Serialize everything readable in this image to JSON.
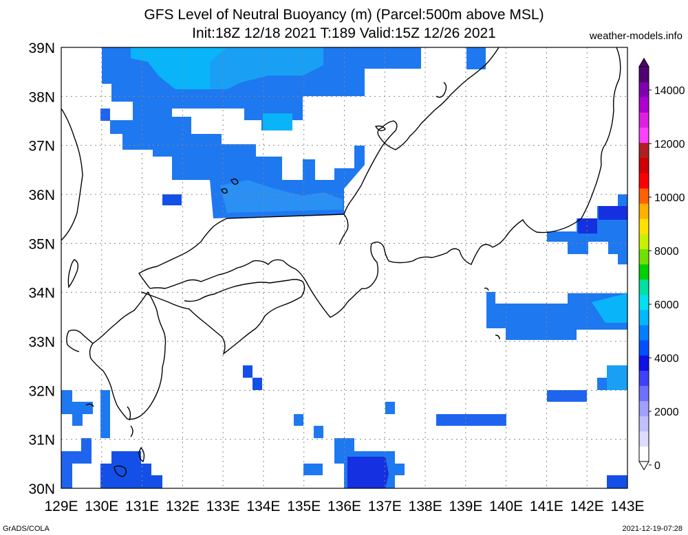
{
  "title": {
    "line1": "GFS Level of Neutral Buoyancy (m) (Parcel:500m above MSL)",
    "line2": "Init:18Z 12/18 2021 T:189 Valid:15Z 12/26 2021",
    "site": "weather-models.info"
  },
  "footer": {
    "left": "GrADS/COLA",
    "right": "2021-12-19-07:28"
  },
  "map": {
    "lon_range": [
      129,
      143
    ],
    "lat_range": [
      30,
      39
    ],
    "lon_labels": [
      "129E",
      "130E",
      "131E",
      "132E",
      "133E",
      "134E",
      "135E",
      "136E",
      "137E",
      "138E",
      "139E",
      "140E",
      "141E",
      "142E",
      "143E"
    ],
    "lat_labels": [
      "39N",
      "38N",
      "37N",
      "36N",
      "35N",
      "34N",
      "33N",
      "32N",
      "31N",
      "30N"
    ],
    "grid_style": "dotted",
    "ocean_color": "#ffffff",
    "coast_color": "#000000"
  },
  "colorbar": {
    "labels": [
      "0",
      "2000",
      "4000",
      "6000",
      "8000",
      "10000",
      "12000",
      "14000"
    ],
    "colors": [
      "#ffffff",
      "#dcdcff",
      "#c0c0ff",
      "#a0a0ff",
      "#7070ff",
      "#4040ff",
      "#1010e8",
      "#0050ff",
      "#0080ff",
      "#00b8ff",
      "#00e0f0",
      "#00e0a0",
      "#00d000",
      "#70e000",
      "#c8f000",
      "#ffe000",
      "#ffb000",
      "#ff6000",
      "#ff0000",
      "#d00000",
      "#b02020",
      "#ff40ff",
      "#e020e0",
      "#b000d0",
      "#8000b0",
      "#500070"
    ],
    "orientation": "vertical",
    "placement": "right"
  }
}
